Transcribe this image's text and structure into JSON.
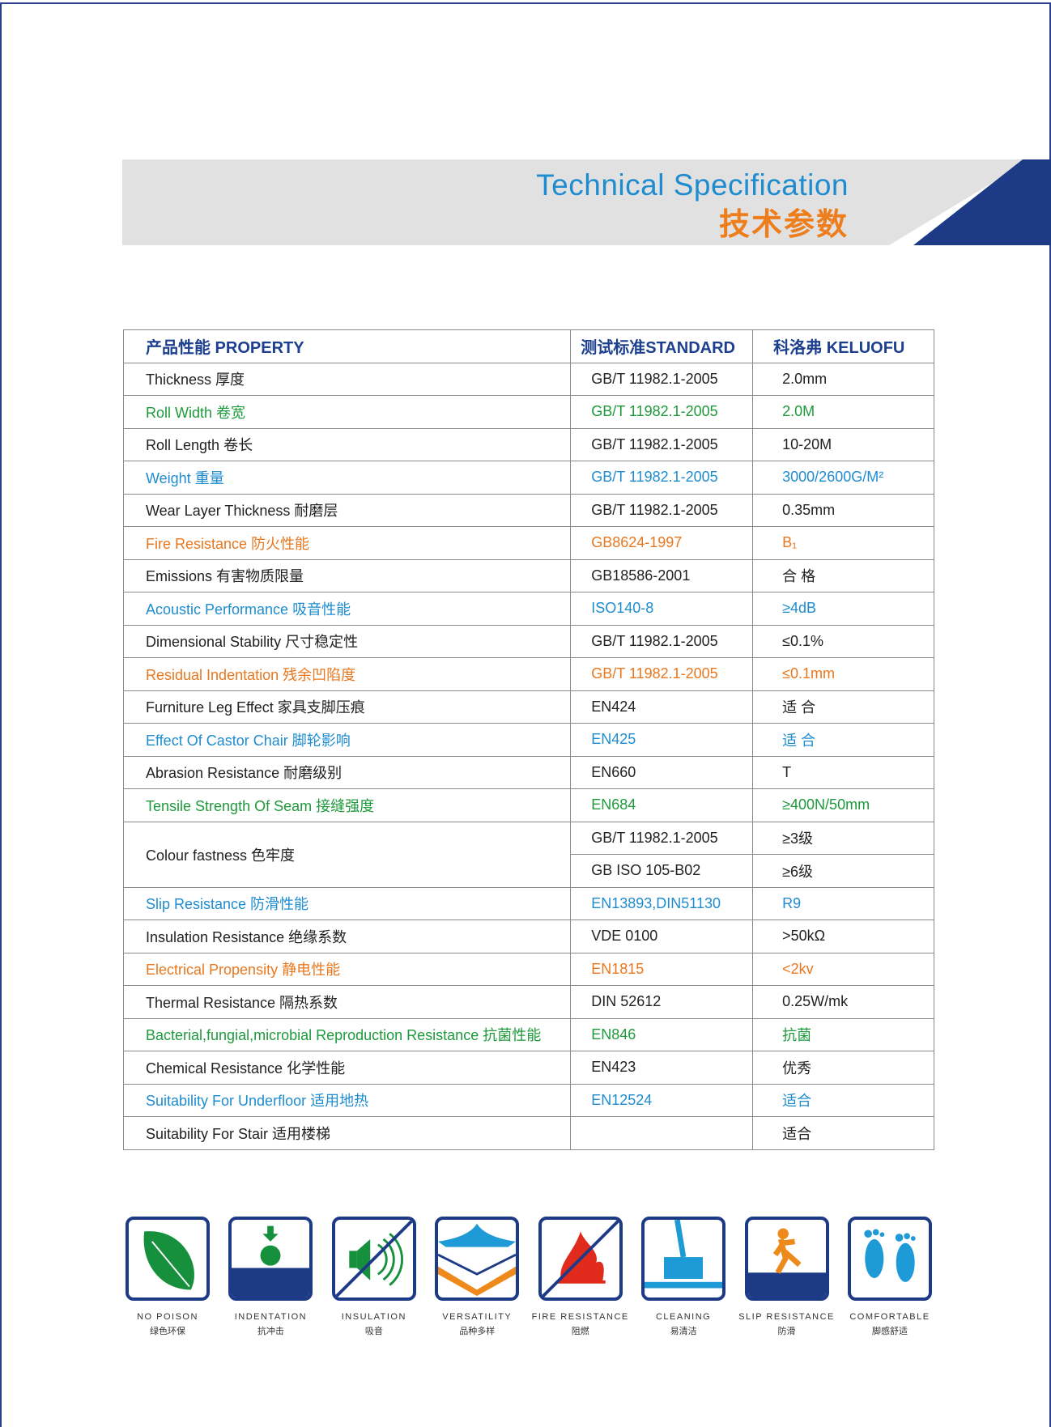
{
  "colors": {
    "black": "#222222",
    "green": "#1e9a3c",
    "blue": "#1e8ccf",
    "orange": "#e8771e",
    "navy": "#1d3a86"
  },
  "banner": {
    "title_en": "Technical Specification",
    "title_cn": "技术参数"
  },
  "table": {
    "headers": [
      "产品性能 PROPERTY",
      "测试标准STANDARD",
      "科洛弗 KELUOFU"
    ],
    "rows": [
      {
        "property": "Thickness 厚度",
        "standard": "GB/T 11982.1-2005",
        "value": "2.0mm",
        "color": "black"
      },
      {
        "property": "Roll Width 卷宽",
        "standard": "GB/T 11982.1-2005",
        "value": "2.0M",
        "color": "green"
      },
      {
        "property": "Roll Length 卷长",
        "standard": "GB/T 11982.1-2005",
        "value": "10-20M",
        "color": "black"
      },
      {
        "property": "Weight 重量",
        "standard": "GB/T 11982.1-2005",
        "value": "3000/2600G/M²",
        "color": "blue"
      },
      {
        "property": "Wear Layer Thickness 耐磨层",
        "standard": "GB/T 11982.1-2005",
        "value": "0.35mm",
        "color": "black"
      },
      {
        "property": "Fire Resistance 防火性能",
        "standard": "GB8624-1997",
        "value": "B₁",
        "color": "orange"
      },
      {
        "property": "Emissions  有害物质限量",
        "standard": "GB18586-2001",
        "value": "合  格",
        "color": "black"
      },
      {
        "property": "Acoustic Performance 吸音性能",
        "standard": "ISO140-8",
        "value": "≥4dB",
        "color": "blue"
      },
      {
        "property": "Dimensional Stability 尺寸稳定性",
        "standard": "GB/T 11982.1-2005",
        "value": "≤0.1%",
        "color": "black"
      },
      {
        "property": "Residual Indentation 残余凹陷度",
        "standard": "GB/T 11982.1-2005",
        "value": "≤0.1mm",
        "color": "orange"
      },
      {
        "property": "Furniture Leg Effect 家具支脚压痕",
        "standard": "EN424",
        "value": "适  合",
        "color": "black"
      },
      {
        "property": "Effect Of Castor Chair 脚轮影响",
        "standard": "EN425",
        "value": "适  合",
        "color": "blue"
      },
      {
        "property": "Abrasion Resistance 耐磨级别",
        "standard": "EN660",
        "value": "T",
        "color": "black"
      },
      {
        "property": "Tensile Strength Of Seam 接缝强度",
        "standard": "EN684",
        "value": "≥400N/50mm",
        "color": "green"
      },
      {
        "property": "Colour fastness 色牢度",
        "standards": [
          "GB/T 11982.1-2005",
          "GB ISO 105-B02"
        ],
        "values": [
          "≥3级",
          "≥6级"
        ],
        "color": "black"
      },
      {
        "property": "Slip Resistance 防滑性能",
        "standard": "EN13893,DIN51130",
        "value": "R9",
        "color": "blue"
      },
      {
        "property": "Insulation Resistance 绝缘系数",
        "standard": "VDE 0100",
        "value": ">50kΩ",
        "color": "black"
      },
      {
        "property": "Electrical Propensity 静电性能",
        "standard": "EN1815",
        "value": "<2kv",
        "color": "orange"
      },
      {
        "property": "Thermal Resistance 隔热系数",
        "standard": "DIN 52612",
        "value": "0.25W/mk",
        "color": "black"
      },
      {
        "property": "Bacterial,fungial,microbial Reproduction Resistance 抗菌性能",
        "standard": "EN846",
        "value": "抗菌",
        "color": "green"
      },
      {
        "property": "Chemical Resistance 化学性能",
        "standard": "EN423",
        "value": "优秀",
        "color": "black"
      },
      {
        "property": "Suitability For Underfloor 适用地热",
        "standard": "EN12524",
        "value": "适合",
        "color": "blue"
      },
      {
        "property": "Suitability For Stair 适用楼梯",
        "standard": "",
        "value": "适合",
        "color": "black"
      }
    ]
  },
  "features": [
    {
      "icon": "leaf-icon",
      "en": "NO POISON",
      "cn": "绿色环保"
    },
    {
      "icon": "indentation-icon",
      "en": "INDENTATION",
      "cn": "抗冲击"
    },
    {
      "icon": "sound-insulation-icon",
      "en": "INSULATION",
      "cn": "吸音"
    },
    {
      "icon": "versatility-layers-icon",
      "en": "VERSATILITY",
      "cn": "品种多样"
    },
    {
      "icon": "fire-resistance-icon",
      "en": "FIRE RESISTANCE",
      "cn": "阻燃"
    },
    {
      "icon": "cleaning-mop-icon",
      "en": "CLEANING",
      "cn": "易清洁"
    },
    {
      "icon": "slip-resistance-icon",
      "en": "SLIP RESISTANCE",
      "cn": "防滑"
    },
    {
      "icon": "footprints-icon",
      "en": "COMFORTABLE",
      "cn": "脚感舒适"
    }
  ]
}
